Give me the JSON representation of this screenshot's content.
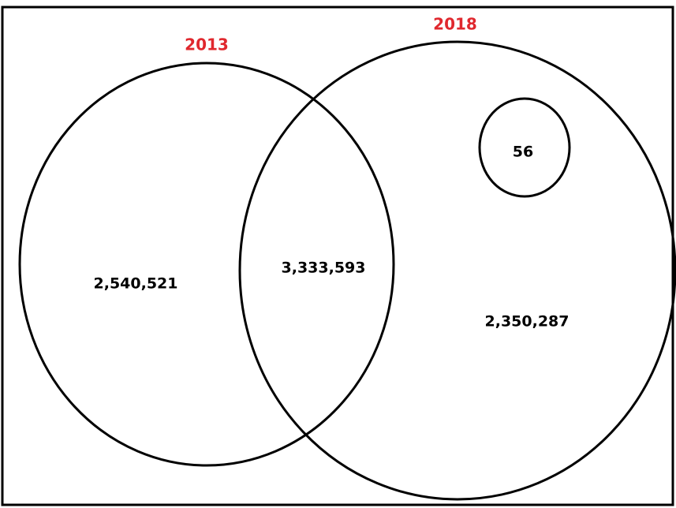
{
  "sets": [
    {
      "label": "2013"
    },
    {
      "label": "2018"
    }
  ],
  "regions": [
    {
      "label": "2,540,521"
    },
    {
      "label": "3,333,593"
    },
    {
      "label": "56"
    },
    {
      "label": "2,350,287"
    }
  ]
}
